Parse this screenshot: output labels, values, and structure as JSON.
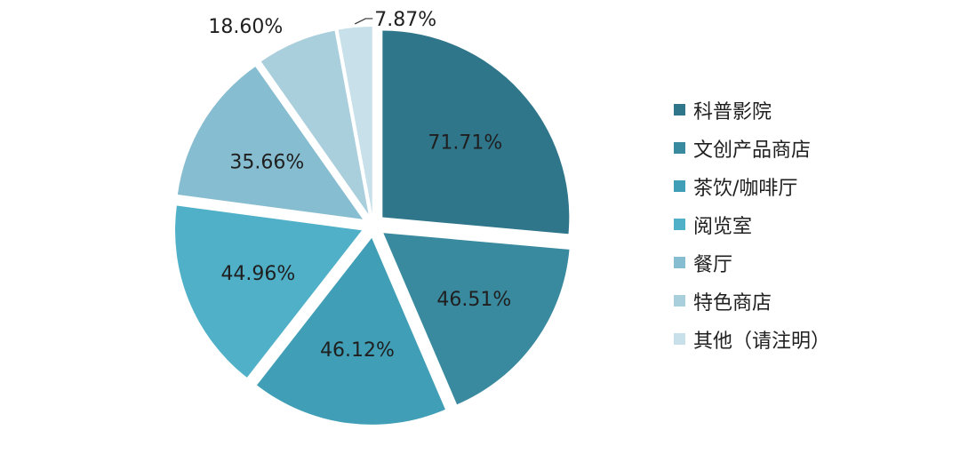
{
  "chart_data": {
    "type": "pie",
    "title": "",
    "categories": [
      "科普影院",
      "文创产品商店",
      "茶饮/咖啡厅",
      "阅览室",
      "餐厅",
      "特色商店",
      "其他（请注明）"
    ],
    "values": [
      71.71,
      46.51,
      46.12,
      44.96,
      35.66,
      18.6,
      7.87
    ],
    "labels": [
      "71.71%",
      "46.51%",
      "46.12%",
      "44.96%",
      "35.66%",
      "18.60%",
      "7.87%"
    ],
    "colors": [
      "#2f768b",
      "#3a8a9f",
      "#409fb6",
      "#4fb0c8",
      "#87bdd0",
      "#a9cedc",
      "#c7e0e9"
    ],
    "legend": {
      "position": "right",
      "entries": [
        "科普影院",
        "文创产品商店",
        "茶饮/咖啡厅",
        "阅览室",
        "餐厅",
        "特色商店",
        "其他（请注明）"
      ]
    },
    "start_angle": "12 o'clock",
    "direction": "clockwise",
    "exploded": true
  }
}
